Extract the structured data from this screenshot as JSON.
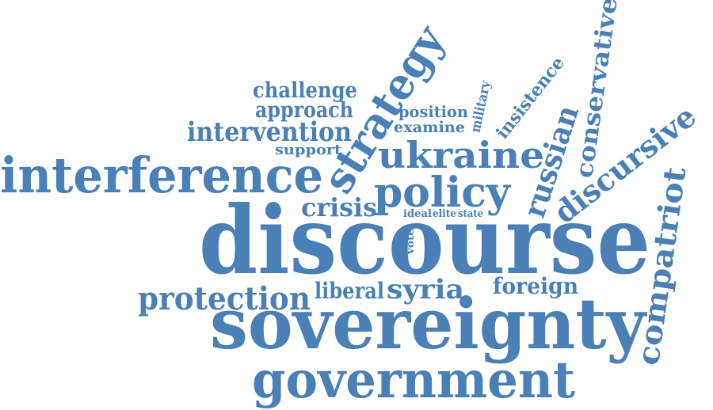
{
  "cloud": {
    "color": "#4a80b6",
    "words": {
      "discourse": "discourse",
      "sovereignty": "sovereignty",
      "government": "government",
      "interference": "interference",
      "policy": "policy",
      "ukraine": "ukraine",
      "strategy": "strategy",
      "protection": "protection",
      "liberal": "liberal",
      "syria": "syria",
      "foreign": "foreign",
      "crisis": "crisis",
      "intervention": "intervention",
      "challenge": "challenge",
      "approach": "approach",
      "support": "support",
      "position": "position",
      "examine": "examine",
      "military": "military",
      "insistence": "insistence",
      "russian": "russian",
      "conservative": "conservative",
      "discursive": "discursive",
      "compatriot": "compatriot",
      "ideal": "ideal",
      "elite": "elite",
      "state": "state",
      "vote": "vote"
    }
  }
}
